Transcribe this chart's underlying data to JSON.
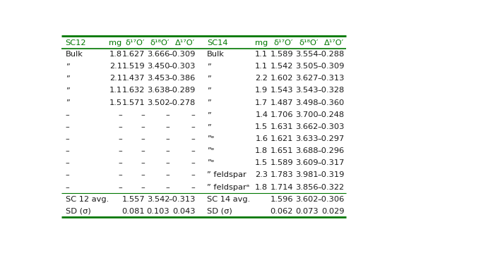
{
  "header_left": [
    "SC12",
    "mg",
    "δ¹⁷O′",
    "δ¹⁸O′",
    "Δ¹⁷O′"
  ],
  "header_right": [
    "SC14",
    "mg",
    "δ¹⁷O′",
    "δ¹⁸O′",
    "Δ¹⁷O′"
  ],
  "rows": [
    [
      "Bulk",
      "1.8",
      "1.627",
      "3.666",
      "–0.309",
      "Bulk",
      "1.1",
      "1.589",
      "3.554",
      "–0.288"
    ],
    [
      "”",
      "2.1",
      "1.519",
      "3.450",
      "–0.303",
      "”",
      "1.1",
      "1.542",
      "3.505",
      "–0.309"
    ],
    [
      "”",
      "2.1",
      "1.437",
      "3.453",
      "–0.386",
      "”",
      "2.2",
      "1.602",
      "3.627",
      "–0.313"
    ],
    [
      "”",
      "1.1",
      "1.632",
      "3.638",
      "–0.289",
      "”",
      "1.9",
      "1.543",
      "3.543",
      "–0.328"
    ],
    [
      "”",
      "1.5",
      "1.571",
      "3.502",
      "–0.278",
      "”",
      "1.7",
      "1.487",
      "3.498",
      "–0.360"
    ],
    [
      "–",
      "–",
      "–",
      "–",
      "–",
      "”",
      "1.4",
      "1.706",
      "3.700",
      "–0.248"
    ],
    [
      "–",
      "–",
      "–",
      "–",
      "–",
      "”",
      "1.5",
      "1.631",
      "3.662",
      "–0.303"
    ],
    [
      "–",
      "–",
      "–",
      "–",
      "–",
      "”ᵉ",
      "1.6",
      "1.621",
      "3.633",
      "–0.297"
    ],
    [
      "–",
      "–",
      "–",
      "–",
      "–",
      "”ᵉ",
      "1.8",
      "1.651",
      "3.688",
      "–0.296"
    ],
    [
      "–",
      "–",
      "–",
      "–",
      "–",
      "”ᵉ",
      "1.5",
      "1.589",
      "3.609",
      "–0.317"
    ],
    [
      "–",
      "–",
      "–",
      "–",
      "–",
      "” feldspar",
      "2.3",
      "1.783",
      "3.981",
      "–0.319"
    ],
    [
      "–",
      "–",
      "–",
      "–",
      "–",
      "” feldsparᵃ",
      "1.8",
      "1.714",
      "3.856",
      "–0.322"
    ]
  ],
  "footer_rows": [
    [
      "SC 12 avg.",
      "",
      "1.557",
      "3.542",
      "–0.313",
      "SC 14 avg.",
      "",
      "1.596",
      "3.602",
      "–0.306"
    ],
    [
      "SD (σ)",
      "",
      "0.081",
      "0.103",
      "0.043",
      "SD (σ)",
      "",
      "0.062",
      "0.073",
      "0.029"
    ]
  ],
  "header_color": "#007700",
  "bg_color": "#ffffff",
  "text_color": "#1a1a1a",
  "border_color": "#007700",
  "font_size": 8.2,
  "header_font_size": 8.2
}
